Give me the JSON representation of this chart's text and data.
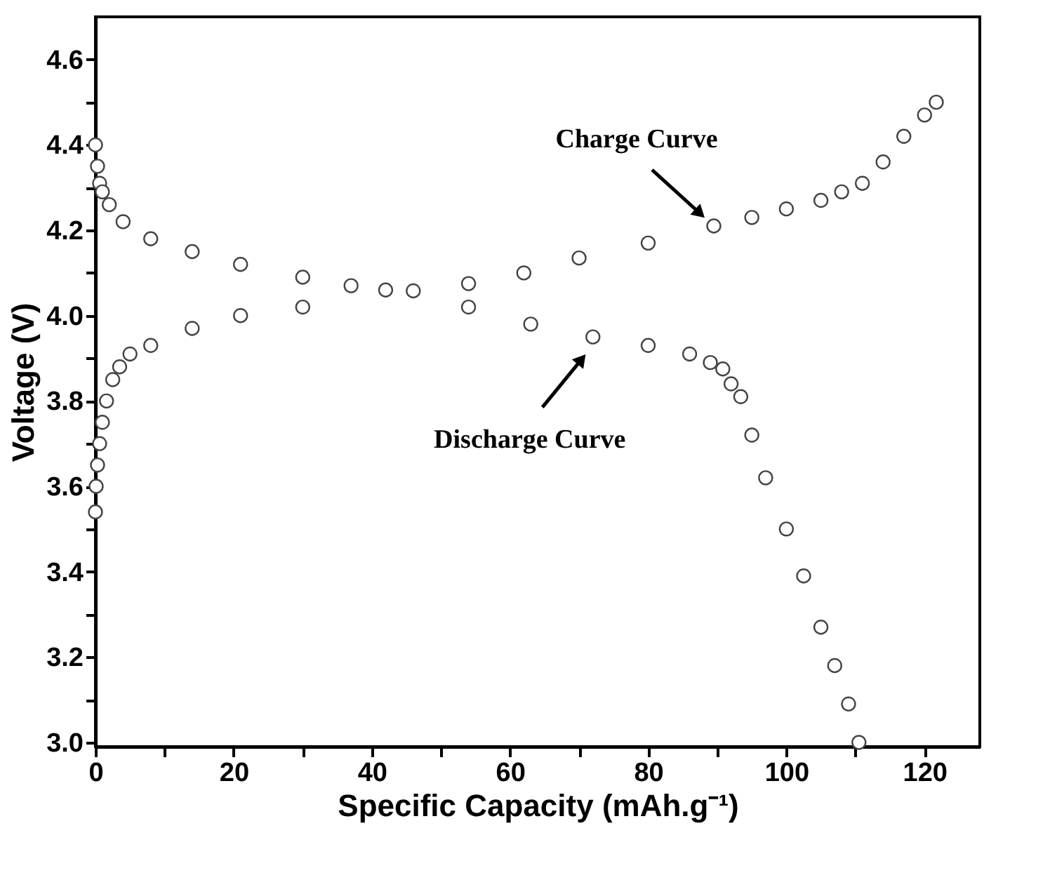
{
  "chart_data": {
    "type": "scatter",
    "xlabel": "Specific Capacity (mAh.g⁻¹)",
    "ylabel": "Voltage (V)",
    "xlim": [
      0,
      128
    ],
    "ylim": [
      2.99,
      4.7
    ],
    "xticks": [
      0,
      {
        "value": 10,
        "label": null
      },
      20,
      {
        "value": 30,
        "label": null
      },
      40,
      {
        "value": 50,
        "label": null
      },
      60,
      {
        "value": 70,
        "label": null
      },
      80,
      {
        "value": 90,
        "label": null
      },
      100,
      {
        "value": 110,
        "label": null
      },
      120
    ],
    "yticks": [
      {
        "value": 3.0,
        "label": "3.0"
      },
      {
        "value": 3.1,
        "label": null
      },
      {
        "value": 3.2,
        "label": "3.2"
      },
      {
        "value": 3.3,
        "label": null
      },
      {
        "value": 3.4,
        "label": "3.4"
      },
      {
        "value": 3.5,
        "label": null
      },
      {
        "value": 3.6,
        "label": "3.6"
      },
      {
        "value": 3.7,
        "label": null
      },
      {
        "value": 3.8,
        "label": "3.8"
      },
      {
        "value": 3.9,
        "label": null
      },
      {
        "value": 4.0,
        "label": "4.0"
      },
      {
        "value": 4.1,
        "label": null
      },
      {
        "value": 4.2,
        "label": "4.2"
      },
      {
        "value": 4.3,
        "label": null
      },
      {
        "value": 4.4,
        "label": "4.4"
      },
      {
        "value": 4.5,
        "label": null
      },
      {
        "value": 4.6,
        "label": "4.6"
      }
    ],
    "marker": "circle",
    "grid": false,
    "series": [
      {
        "color": "#444444",
        "x": [
          0,
          0.1,
          0.3,
          0.6,
          1,
          1.6,
          2.5,
          3.5,
          5,
          8,
          14,
          21,
          30,
          46,
          54,
          62,
          70,
          80,
          89.5,
          95,
          100,
          105,
          108,
          111,
          114,
          117,
          120,
          121.7
        ],
        "values": [
          3.54,
          3.6,
          3.65,
          3.7,
          3.75,
          3.8,
          3.85,
          3.88,
          3.91,
          3.93,
          3.97,
          4.0,
          4.02,
          4.058,
          4.075,
          4.1,
          4.135,
          4.17,
          4.21,
          4.23,
          4.25,
          4.27,
          4.29,
          4.31,
          4.36,
          4.42,
          4.47,
          4.5
        ]
      },
      {
        "color": "#444444",
        "x": [
          0,
          0.3,
          0.6,
          1,
          2,
          4,
          8,
          14,
          21,
          30,
          37,
          42,
          54,
          63,
          72,
          80,
          86,
          89,
          90.8,
          92,
          93.4,
          95,
          97,
          100,
          102.5,
          105,
          107,
          109,
          110.5
        ],
        "values": [
          4.4,
          4.35,
          4.31,
          4.29,
          4.26,
          4.22,
          4.18,
          4.15,
          4.12,
          4.09,
          4.07,
          4.06,
          4.02,
          3.98,
          3.95,
          3.93,
          3.91,
          3.89,
          3.875,
          3.84,
          3.81,
          3.72,
          3.62,
          3.5,
          3.39,
          3.27,
          3.18,
          3.09,
          3.0
        ]
      }
    ],
    "annotations": [
      {
        "text": "Charge Curve",
        "x": 89.5,
        "y": 4.21
      },
      {
        "text": "Discharge Curve",
        "x": 72,
        "y": 3.93
      }
    ]
  }
}
